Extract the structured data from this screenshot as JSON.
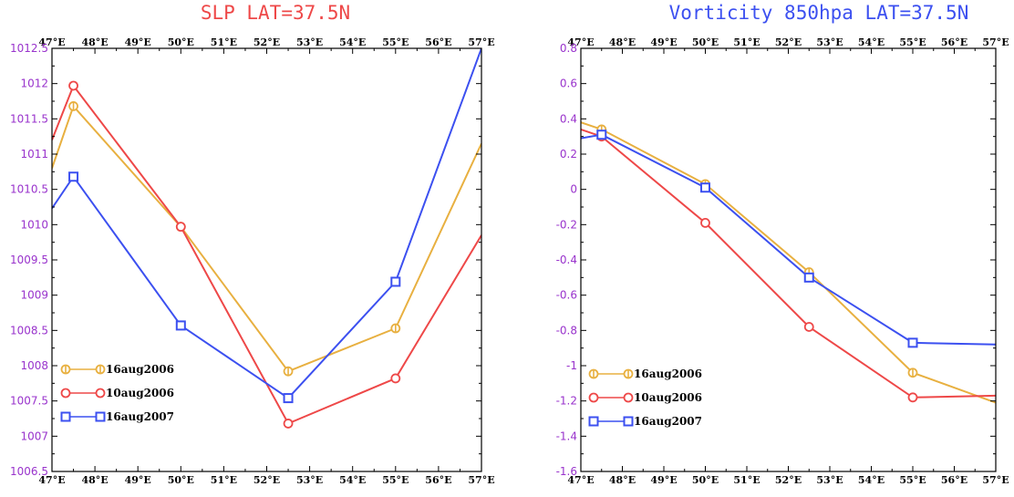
{
  "colors": {
    "series_2006_16aug": "#e8b040",
    "series_2006_10aug": "#ee4848",
    "series_2007_16aug": "#3c50f0",
    "ytick_left": "#9933cc",
    "ytick_right": "#9933cc",
    "title_left": "#ee4848",
    "title_right": "#3c50f0"
  },
  "chart_data": [
    {
      "type": "line",
      "title": "SLP LAT=37.5N",
      "xlabel": "",
      "ylabel": "",
      "xlim": [
        47,
        57
      ],
      "ylim": [
        1006.5,
        1012.5
      ],
      "x_ticks": [
        47,
        48,
        49,
        50,
        51,
        52,
        53,
        54,
        55,
        56,
        57
      ],
      "x_tick_labels": [
        "47°E",
        "48°E",
        "49°E",
        "50°E",
        "51°E",
        "52°E",
        "53°E",
        "54°E",
        "55°E",
        "56°E",
        "57°E"
      ],
      "y_ticks": [
        1006.5,
        1007,
        1007.5,
        1008,
        1008.5,
        1009,
        1009.5,
        1010,
        1010.5,
        1011,
        1011.5,
        1012,
        1012.5
      ],
      "y_tick_labels": [
        "1006.5",
        "1007",
        "1007.5",
        "1008",
        "1008.5",
        "1009",
        "1009.5",
        "1010",
        "1010.5",
        "1011",
        "1011.5",
        "1012",
        "1012.5"
      ],
      "grid": false,
      "legend_position": "lower-left",
      "series": [
        {
          "name": "16aug2006",
          "marker": "circle-cross",
          "x": [
            47,
            47.5,
            50,
            52.5,
            55,
            57
          ],
          "y": [
            1010.8,
            1011.68,
            1009.97,
            1007.92,
            1008.53,
            1011.15
          ],
          "marker_x": [
            47.5,
            50,
            52.5,
            55
          ]
        },
        {
          "name": "10aug2006",
          "marker": "circle",
          "x": [
            47,
            47.5,
            50,
            52.5,
            55,
            57
          ],
          "y": [
            1011.2,
            1011.97,
            1009.97,
            1007.18,
            1007.82,
            1009.85
          ],
          "marker_x": [
            47.5,
            50,
            52.5,
            55
          ]
        },
        {
          "name": "16aug2007",
          "marker": "square",
          "x": [
            47,
            47.5,
            50,
            52.5,
            55,
            57
          ],
          "y": [
            1010.23,
            1010.68,
            1008.57,
            1007.54,
            1009.19,
            1012.5
          ],
          "marker_x": [
            47.5,
            50,
            52.5,
            55
          ]
        }
      ]
    },
    {
      "type": "line",
      "title": "Vorticity 850hpa LAT=37.5N",
      "xlabel": "",
      "ylabel": "",
      "xlim": [
        47,
        57
      ],
      "ylim": [
        -1.6,
        0.8
      ],
      "x_ticks": [
        47,
        48,
        49,
        50,
        51,
        52,
        53,
        54,
        55,
        56,
        57
      ],
      "x_tick_labels": [
        "47°E",
        "48°E",
        "49°E",
        "50°E",
        "51°E",
        "52°E",
        "53°E",
        "54°E",
        "55°E",
        "56°E",
        "57°E"
      ],
      "y_ticks": [
        -1.6,
        -1.4,
        -1.2,
        -1,
        -0.8,
        -0.6,
        -0.4,
        -0.2,
        0,
        0.2,
        0.4,
        0.6,
        0.8
      ],
      "y_tick_labels": [
        "-1.6",
        "-1.4",
        "-1.2",
        "-1",
        "-0.8",
        "-0.6",
        "-0.4",
        "-0.2",
        "0",
        "0.2",
        "0.4",
        "0.6",
        "0.8"
      ],
      "grid": false,
      "legend_position": "lower-left",
      "series": [
        {
          "name": "16aug2006",
          "marker": "circle-cross",
          "x": [
            47,
            47.5,
            50,
            52.5,
            55,
            57
          ],
          "y": [
            0.38,
            0.34,
            0.03,
            -0.47,
            -1.04,
            -1.21
          ],
          "marker_x": [
            47.5,
            50,
            52.5,
            55
          ]
        },
        {
          "name": "10aug2006",
          "marker": "circle",
          "x": [
            47,
            47.5,
            50,
            52.5,
            55,
            57
          ],
          "y": [
            0.34,
            0.3,
            -0.19,
            -0.78,
            -1.18,
            -1.17
          ],
          "marker_x": [
            47.5,
            50,
            52.5,
            55
          ]
        },
        {
          "name": "16aug2007",
          "marker": "square",
          "x": [
            47,
            47.5,
            50,
            52.5,
            55,
            57
          ],
          "y": [
            0.29,
            0.31,
            0.01,
            -0.5,
            -0.87,
            -0.88
          ],
          "marker_x": [
            47.5,
            50,
            52.5,
            55
          ]
        }
      ]
    }
  ]
}
